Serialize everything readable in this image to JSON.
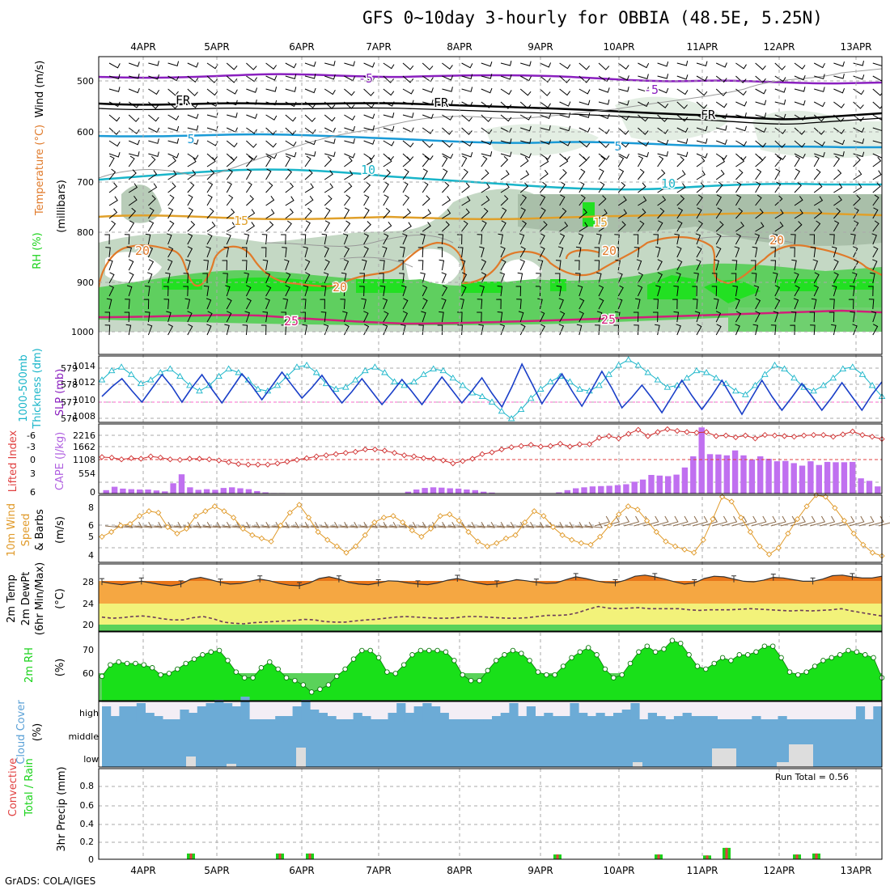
{
  "title": "GFS 0~10day 3-hourly for OBBIA (48.5E, 5.25N)",
  "footer": "GrADS: COLA/IGES",
  "dates": [
    "4APR",
    "5APR",
    "6APR",
    "7APR",
    "8APR",
    "9APR",
    "10APR",
    "11APR",
    "12APR",
    "13APR"
  ],
  "panels": {
    "upper": {
      "labels": [
        "RH (%)",
        "Temperature (°C)",
        "Wind (m/s)",
        "(millibars)"
      ],
      "yticks": [
        "500",
        "600",
        "700",
        "800",
        "900",
        "1000"
      ],
      "contour_labels": [
        "-5",
        "FR",
        "5",
        "10",
        "15",
        "20",
        "25"
      ],
      "colors": {
        "temp_minus5": "#8a1fbf",
        "freezing": "#000000",
        "temp5": "#1a9ad6",
        "temp10": "#19b5c9",
        "temp15": "#e0a02a",
        "temp20": "#e07a2a",
        "temp25": "#d0207a",
        "rh_high": "#19d219",
        "rh_mid": "#5ad25a",
        "rh_low": "#c8dcc8"
      }
    },
    "slp": {
      "labels": [
        "1000-500mb",
        "Thickness (dm)",
        "SLP (mb)"
      ],
      "left_ticks": [
        "579",
        "578",
        "577",
        "576"
      ],
      "right_ticks": [
        "1014",
        "1012",
        "1010",
        "1008"
      ]
    },
    "cape": {
      "labels": [
        "Lifted Index",
        "CAPE (J/kg)"
      ],
      "left_ticks": [
        "-6",
        "-3",
        "0",
        "3",
        "6"
      ],
      "right_ticks": [
        "2216",
        "1662",
        "1108",
        "554",
        "0"
      ]
    },
    "wind10": {
      "labels": [
        "10m Wind",
        "Speed",
        "& Barbs",
        "(m/s)"
      ],
      "yticks": [
        "8",
        "6",
        "5",
        "4"
      ]
    },
    "temp2m": {
      "labels": [
        "2m Temp",
        "2m DewPt",
        "(6hr Min/Max)",
        "(°C)"
      ],
      "yticks": [
        "28",
        "24",
        "20"
      ]
    },
    "rh2m": {
      "labels": [
        "2m RH",
        "(%)"
      ],
      "yticks": [
        "70",
        "60"
      ]
    },
    "cloud": {
      "labels": [
        "Cloud Cover",
        "(%)"
      ],
      "levels": [
        "high",
        "middle",
        "low"
      ]
    },
    "precip": {
      "labels": [
        "Total / Rain",
        "Convective",
        "3hr Precip (mm)"
      ],
      "yticks": [
        "0.8",
        "0.6",
        "0.4",
        "0.2",
        "0"
      ],
      "run_total": "Run Total = 0.56"
    }
  },
  "chart_data": [
    {
      "type": "line",
      "name": "1000-500mb Thickness",
      "ylabel": "Thickness (dm)",
      "ylim": [
        575.9,
        579.5
      ],
      "values": [
        578.2,
        578.7,
        578.9,
        578.5,
        578.0,
        578.2,
        578.6,
        578.8,
        578.4,
        577.9,
        577.6,
        577.9,
        578.4,
        578.8,
        578.6,
        578.2,
        577.7,
        577.6,
        577.9,
        578.4,
        578.9,
        579.0,
        578.6,
        578.0,
        577.7,
        577.8,
        578.2,
        578.7,
        578.9,
        578.6,
        578.1,
        577.9,
        578.1,
        578.5,
        578.8,
        578.7,
        578.3,
        577.9,
        577.5,
        577.3,
        577.0,
        576.5,
        576.1,
        576.6,
        577.2,
        577.7,
        578.1,
        578.4,
        578.1,
        577.7,
        577.6,
        577.9,
        578.5,
        579.0,
        579.3,
        579.0,
        578.6,
        578.2,
        577.8,
        577.9,
        578.3,
        578.7,
        578.6,
        578.3,
        578.0,
        577.6,
        577.4,
        577.9,
        578.5,
        579.0,
        578.8,
        578.3,
        577.8,
        577.6,
        577.9,
        578.3,
        578.8,
        578.9,
        578.5,
        577.9,
        577.3
      ]
    },
    {
      "type": "line",
      "name": "SLP",
      "ylabel": "SLP (mb)",
      "ylim": [
        1007.4,
        1015.6
      ],
      "values": [
        1010.6,
        1011.8,
        1012.8,
        1011.3,
        1009.9,
        1011.6,
        1013.3,
        1011.8,
        1009.9,
        1011.7,
        1013.3,
        1011.5,
        1009.8,
        1011.6,
        1013.4,
        1011.9,
        1010.2,
        1011.9,
        1013.6,
        1012.0,
        1010.4,
        1011.7,
        1013.2,
        1011.4,
        1009.8,
        1011.2,
        1012.8,
        1011.2,
        1009.6,
        1011.1,
        1012.7,
        1011.2,
        1009.6,
        1011.3,
        1013.0,
        1011.4,
        1009.8,
        1011.3,
        1012.9,
        1011.0,
        1009.3,
        1011.8,
        1014.6,
        1012.2,
        1009.7,
        1011.6,
        1013.4,
        1011.3,
        1009.4,
        1011.5,
        1013.7,
        1011.6,
        1009.2,
        1010.5,
        1012.0,
        1010.4,
        1008.6,
        1010.6,
        1012.6,
        1010.7,
        1009.0,
        1010.7,
        1012.6,
        1010.5,
        1008.4,
        1010.5,
        1012.6,
        1010.6,
        1008.9,
        1010.5,
        1012.2,
        1010.6,
        1008.9,
        1010.5,
        1012.3,
        1010.6,
        1008.9,
        1010.8,
        1012.4
      ]
    },
    {
      "type": "line",
      "name": "Lifted Index",
      "ylabel": "Lifted Index",
      "ylim": [
        6,
        -6
      ],
      "values": [
        -0.3,
        -0.2,
        0.1,
        -0.1,
        0.0,
        -0.4,
        -0.2,
        0.1,
        0.2,
        0.0,
        0.0,
        0.1,
        0.3,
        0.6,
        0.9,
        1.0,
        1.0,
        1.0,
        0.8,
        0.5,
        0.2,
        -0.1,
        -0.4,
        -0.6,
        -0.8,
        -1.0,
        -1.2,
        -1.6,
        -1.6,
        -1.4,
        -1.0,
        -0.6,
        -0.4,
        -0.1,
        0.0,
        0.3,
        0.8,
        0.4,
        0.0,
        -0.8,
        -1.1,
        -1.6,
        -2.0,
        -2.2,
        -2.4,
        -2.1,
        -2.2,
        -2.6,
        -2.1,
        -2.5,
        -2.5,
        -3.6,
        -3.9,
        -3.5,
        -4.3,
        -5.0,
        -3.9,
        -4.6,
        -5.1,
        -4.8,
        -4.6,
        -4.5,
        -4.6,
        -3.9,
        -4.0,
        -3.7,
        -4.0,
        -3.5,
        -4.1,
        -4.0,
        -3.9,
        -3.8,
        -4.0,
        -4.1,
        -4.1,
        -3.8,
        -4.2,
        -4.7,
        -4.1,
        -3.8,
        -3.4
      ]
    },
    {
      "type": "bar",
      "name": "CAPE",
      "ylabel": "CAPE (J/kg)",
      "ylim": [
        0,
        2216
      ],
      "values": [
        110,
        220,
        160,
        140,
        130,
        130,
        100,
        70,
        330,
        620,
        200,
        120,
        140,
        120,
        180,
        200,
        170,
        140,
        80,
        40,
        15,
        15,
        10,
        5,
        5,
        0,
        0,
        0,
        0,
        0,
        0,
        0,
        0,
        0,
        0,
        10,
        60,
        130,
        180,
        200,
        190,
        170,
        160,
        130,
        110,
        60,
        30,
        10,
        5,
        0,
        0,
        0,
        0,
        0,
        40,
        110,
        170,
        200,
        230,
        240,
        250,
        270,
        300,
        380,
        450,
        600,
        580,
        560,
        610,
        840,
        1200,
        2130,
        1270,
        1260,
        1230,
        1390,
        1230,
        1100,
        1200,
        1120,
        1040,
        1050,
        980,
        900,
        1040,
        920,
        1020,
        1010,
        1010,
        1020,
        490,
        410,
        230
      ]
    },
    {
      "type": "line",
      "name": "10m Wind Speed",
      "ylabel": "(m/s)",
      "ylim": [
        3.6,
        7.8
      ],
      "values": [
        5.2,
        5.5,
        5.9,
        6.0,
        6.5,
        6.8,
        6.7,
        5.8,
        5.4,
        5.7,
        6.5,
        6.8,
        7.1,
        6.8,
        6.4,
        5.7,
        5.3,
        5.1,
        4.9,
        5.9,
        6.7,
        7.2,
        6.4,
        5.5,
        5.0,
        4.6,
        4.2,
        4.6,
        5.3,
        6.1,
        6.4,
        6.5,
        6.1,
        5.6,
        5.2,
        5.7,
        6.5,
        6.6,
        6.2,
        5.5,
        4.9,
        4.6,
        4.8,
        5.1,
        5.3,
        6.1,
        6.8,
        6.5,
        5.8,
        5.3,
        5.0,
        4.8,
        4.7,
        5.2,
        5.9,
        6.6,
        7.1,
        6.9,
        6.2,
        5.5,
        4.9,
        4.6,
        4.4,
        4.2,
        5.0,
        6.3,
        7.7,
        7.4,
        6.4,
        5.5,
        4.6,
        4.1,
        4.5,
        5.4,
        6.3,
        7.1,
        7.8,
        7.7,
        7.0,
        6.2,
        5.4,
        4.7,
        4.2,
        4.0
      ]
    },
    {
      "type": "area",
      "name": "2m Temp",
      "ylabel": "(°C)",
      "ylim": [
        19,
        31
      ],
      "values": [
        27.8,
        27.5,
        27.3,
        27.6,
        27.9,
        27.6,
        27.3,
        27.1,
        27.4,
        28.3,
        28.6,
        28.2,
        27.7,
        27.4,
        27.5,
        27.9,
        28.3,
        28.0,
        27.5,
        27.2,
        27.1,
        27.6,
        28.4,
        28.7,
        28.3,
        27.7,
        27.4,
        27.3,
        27.6,
        28.0,
        27.9,
        27.6,
        27.4,
        27.3,
        27.6,
        28.1,
        28.4,
        28.0,
        27.6,
        27.3,
        27.4,
        27.8,
        28.2,
        28.0,
        27.7,
        27.5,
        27.6,
        28.2,
        28.7,
        28.4,
        28.0,
        27.7,
        27.6,
        28.1,
        28.8,
        29.0,
        28.7,
        28.3,
        27.8,
        27.4,
        27.6,
        28.4,
        28.8,
        28.7,
        28.3,
        27.9,
        27.8,
        28.1,
        28.6,
        28.5,
        28.2,
        27.9,
        27.9,
        28.3,
        28.9,
        29.0,
        28.7,
        28.5,
        28.5,
        28.8
      ]
    },
    {
      "type": "line",
      "name": "2m DewPt",
      "ylabel": "(°C)",
      "ylim": [
        19,
        31
      ],
      "values": [
        21.5,
        21.3,
        21.4,
        21.6,
        21.7,
        21.5,
        21.2,
        21.0,
        21.0,
        21.4,
        21.6,
        21.2,
        20.6,
        20.4,
        20.3,
        20.5,
        20.6,
        20.7,
        20.8,
        20.9,
        21.1,
        21.0,
        20.7,
        20.6,
        20.6,
        20.8,
        21.0,
        21.1,
        21.3,
        21.5,
        21.6,
        21.5,
        21.4,
        21.3,
        21.3,
        21.4,
        21.6,
        21.6,
        21.5,
        21.4,
        21.3,
        21.3,
        21.4,
        21.6,
        21.8,
        21.8,
        21.9,
        22.3,
        22.9,
        23.4,
        23.1,
        23.0,
        23.1,
        23.2,
        23.0,
        23.0,
        23.0,
        23.0,
        22.8,
        22.7,
        22.8,
        22.8,
        22.8,
        22.9,
        23.0,
        22.9,
        22.8,
        22.7,
        22.6,
        22.7,
        22.6,
        22.7,
        22.8,
        23.0,
        22.6,
        22.3,
        22.0,
        21.7
      ]
    },
    {
      "type": "area",
      "name": "2m RH",
      "ylabel": "(%)",
      "ylim": [
        52,
        76
      ],
      "values": [
        60.5,
        64.5,
        65.5,
        65,
        65,
        64.5,
        63.5,
        61,
        61.5,
        63,
        65,
        66.5,
        68,
        69,
        69.5,
        66,
        62,
        60,
        60,
        63.5,
        65.5,
        63,
        60,
        59,
        57.5,
        55,
        56,
        57.5,
        60.5,
        63,
        66.5,
        69.5,
        69.5,
        67,
        62,
        61.5,
        64.5,
        68,
        69.5,
        69.5,
        69.5,
        69,
        66,
        61,
        59,
        59,
        62.5,
        66,
        68,
        69.5,
        68.5,
        66,
        62,
        61,
        61,
        64,
        67,
        69,
        70.5,
        68,
        63,
        60,
        61,
        65,
        69,
        71,
        69,
        70,
        73,
        72,
        68,
        64,
        63,
        65,
        67,
        66,
        68,
        68,
        69,
        71,
        71,
        67,
        62,
        61,
        62,
        64,
        66,
        67,
        68,
        69.5,
        69,
        68,
        67,
        60
      ]
    },
    {
      "type": "bar",
      "name": "3hr Precip",
      "ylabel": "3hr Precip (mm)",
      "ylim": [
        0,
        0.95
      ],
      "x": [
        "4APR 21z",
        "5APR 21z",
        "6APR 03z",
        "9APR 06z",
        "10APR 15z",
        "11APR 03z",
        "11APR 09z",
        "12APR 06z",
        "12APR 12z"
      ],
      "values": [
        0.06,
        0.06,
        0.06,
        0.05,
        0.05,
        0.04,
        0.12,
        0.05,
        0.06
      ]
    }
  ]
}
